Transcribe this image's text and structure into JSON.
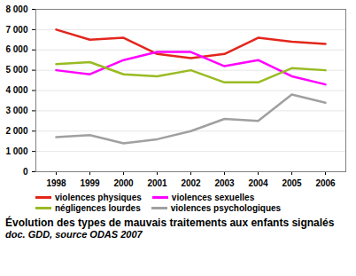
{
  "chart_data": {
    "type": "line",
    "title": "Évolution des types de mauvais traitements aux enfants signalés",
    "subtitle": "doc. GDD, source ODAS 2007",
    "categories": [
      "1998",
      "1999",
      "2000",
      "2001",
      "2002",
      "2003",
      "2004",
      "2005",
      "2006"
    ],
    "series": [
      {
        "name": "violences physiques",
        "color": "#e3261c",
        "values": [
          7000,
          6500,
          6600,
          5800,
          5600,
          5800,
          6600,
          6400,
          6300
        ]
      },
      {
        "name": "violences sexuelles",
        "color": "#ff00ff",
        "values": [
          5000,
          4800,
          5500,
          5900,
          5900,
          5200,
          5500,
          4700,
          4300
        ]
      },
      {
        "name": "négligences lourdes",
        "color": "#99bb22",
        "values": [
          5300,
          5400,
          4800,
          4700,
          5000,
          4400,
          4400,
          5100,
          5000
        ]
      },
      {
        "name": "violences psychologiques",
        "color": "#a0a0a0",
        "values": [
          1700,
          1800,
          1400,
          1600,
          2000,
          2600,
          2500,
          3800,
          3400
        ]
      }
    ],
    "ylim": [
      0,
      8000
    ],
    "yticks": [
      0,
      {
        "value": 1000,
        "label": "1 000"
      },
      {
        "value": 2000,
        "label": "2 000"
      },
      {
        "value": 3000,
        "label": "3 000"
      },
      {
        "value": 4000,
        "label": "4 000"
      },
      {
        "value": 5000,
        "label": "5 000"
      },
      {
        "value": 6000,
        "label": "6 000"
      },
      {
        "value": 7000,
        "label": "7 000"
      },
      {
        "value": 8000,
        "label": "8 000"
      }
    ],
    "grid": true,
    "legend": "bottom"
  }
}
